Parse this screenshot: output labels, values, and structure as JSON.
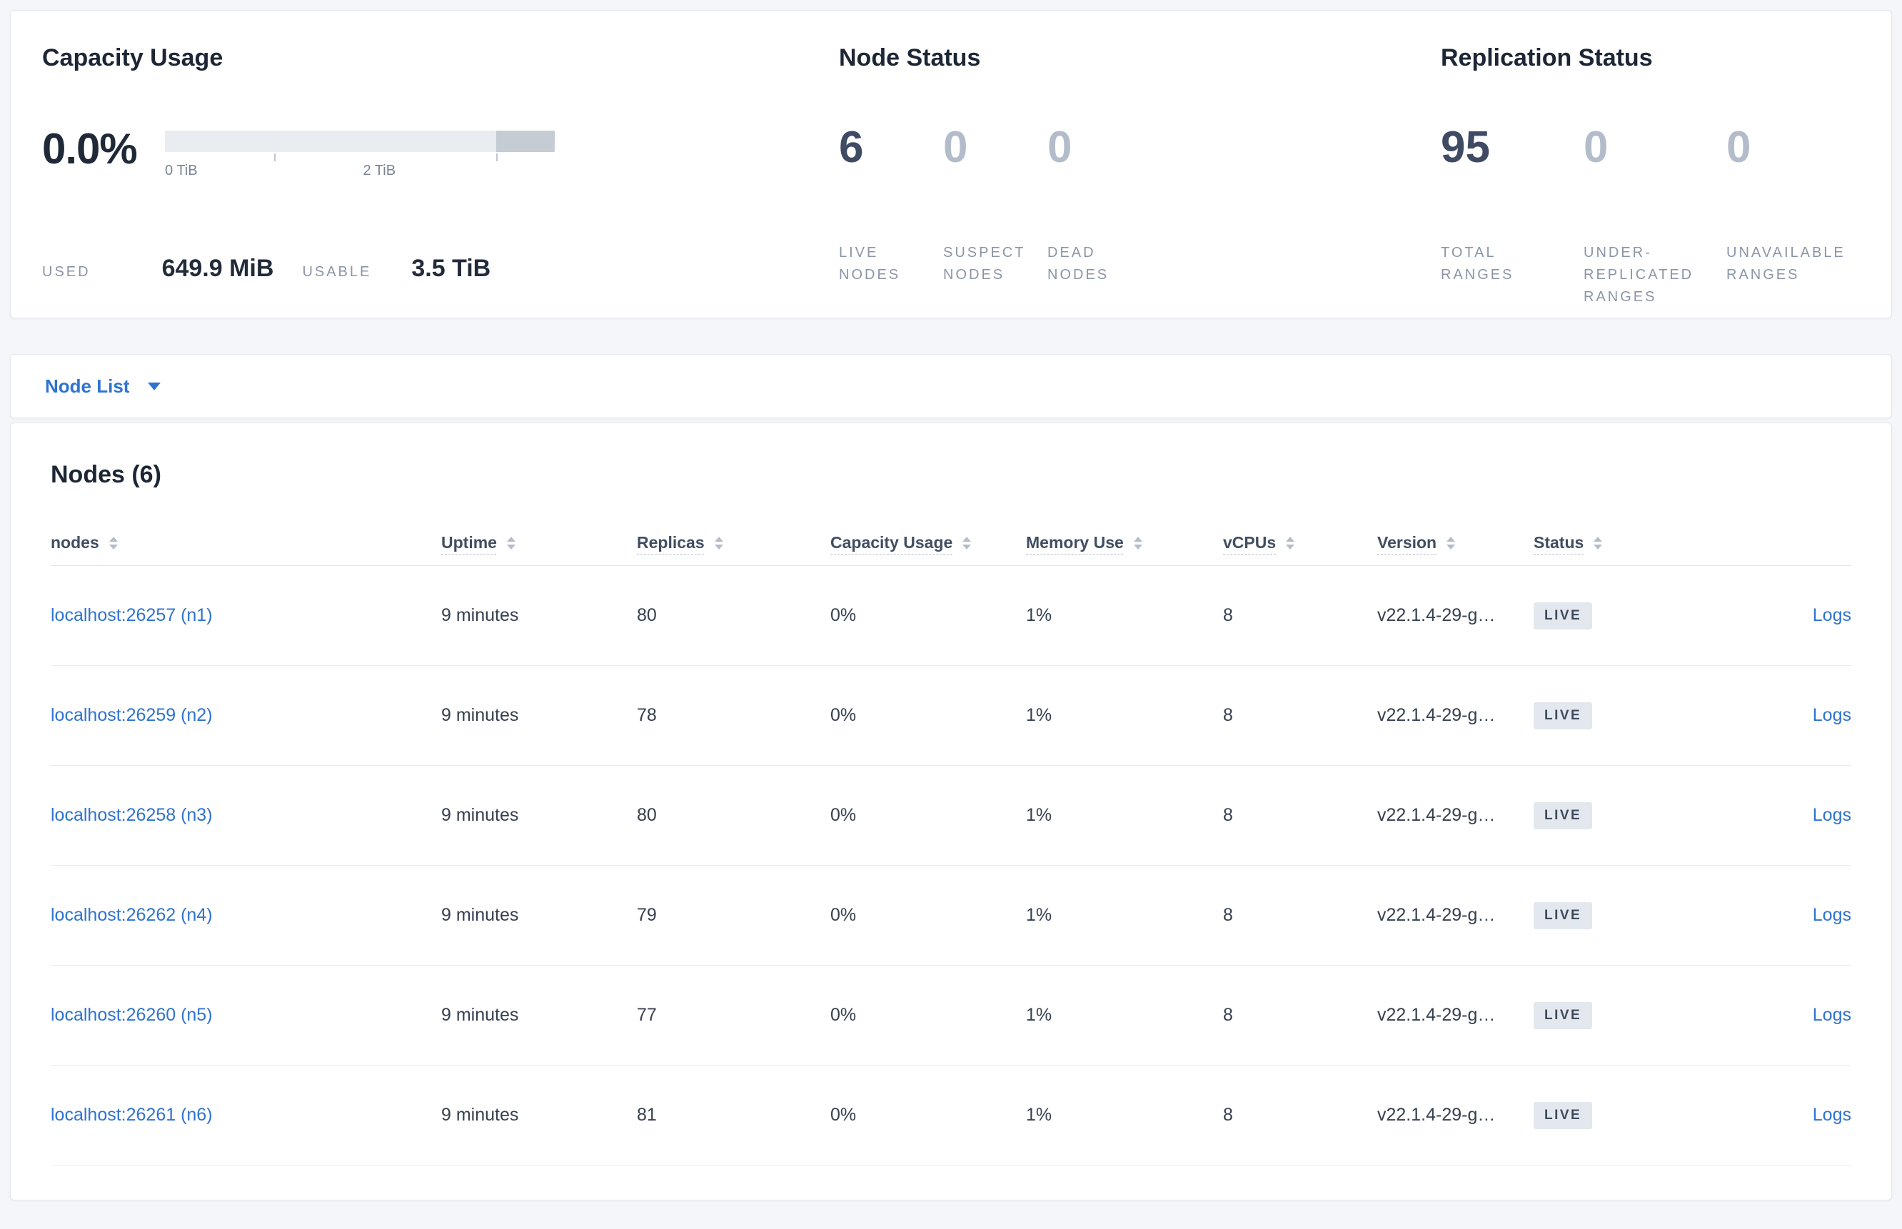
{
  "theme": {
    "accent_blue": "#2f73d0",
    "page_bg": "#f4f6f9",
    "card_bg": "#ffffff",
    "heading_color": "#1d2635",
    "stat_value_color": "#3f4b63",
    "stat_muted_color": "#b3bcca",
    "label_color": "#8b95a7",
    "cell_color": "#37404f",
    "border_color": "#e8ecf1",
    "badge_bg": "#e3e8ef",
    "badge_color": "#3f4a5c",
    "bar_bg": "#e9edf2",
    "bar_dark": "#c6ccd4"
  },
  "summary": {
    "capacity": {
      "title": "Capacity Usage",
      "percent": "0.0%",
      "tick_label_0": "0 TiB",
      "tick_label_2": "2 TiB",
      "used_label": "USED",
      "used_value": "649.9 MiB",
      "usable_label": "USABLE",
      "usable_value": "3.5 TiB"
    },
    "node_status": {
      "title": "Node Status",
      "stats": [
        {
          "value": "6",
          "label": "LIVE NODES"
        },
        {
          "value": "0",
          "label": "SUSPECT NODES"
        },
        {
          "value": "0",
          "label": "DEAD NODES"
        }
      ]
    },
    "replication_status": {
      "title": "Replication Status",
      "stats": [
        {
          "value": "95",
          "label": "TOTAL RANGES"
        },
        {
          "value": "0",
          "label": "UNDER-REPLICATED RANGES"
        },
        {
          "value": "0",
          "label": "UNAVAILABLE RANGES"
        }
      ]
    }
  },
  "view_selector": {
    "label": "Node List"
  },
  "nodes_table": {
    "title": "Nodes (6)",
    "columns": {
      "nodes": "nodes",
      "uptime": "Uptime",
      "replicas": "Replicas",
      "capacity": "Capacity Usage",
      "memory": "Memory Use",
      "vcpus": "vCPUs",
      "version": "Version",
      "status": "Status"
    },
    "rows": [
      {
        "node": "localhost:26257 (n1)",
        "uptime": "9 minutes",
        "replicas": "80",
        "capacity": "0%",
        "memory": "1%",
        "vcpus": "8",
        "version": "v22.1.4-29-g…",
        "status": "LIVE",
        "logs": "Logs"
      },
      {
        "node": "localhost:26259 (n2)",
        "uptime": "9 minutes",
        "replicas": "78",
        "capacity": "0%",
        "memory": "1%",
        "vcpus": "8",
        "version": "v22.1.4-29-g…",
        "status": "LIVE",
        "logs": "Logs"
      },
      {
        "node": "localhost:26258 (n3)",
        "uptime": "9 minutes",
        "replicas": "80",
        "capacity": "0%",
        "memory": "1%",
        "vcpus": "8",
        "version": "v22.1.4-29-g…",
        "status": "LIVE",
        "logs": "Logs"
      },
      {
        "node": "localhost:26262 (n4)",
        "uptime": "9 minutes",
        "replicas": "79",
        "capacity": "0%",
        "memory": "1%",
        "vcpus": "8",
        "version": "v22.1.4-29-g…",
        "status": "LIVE",
        "logs": "Logs"
      },
      {
        "node": "localhost:26260 (n5)",
        "uptime": "9 minutes",
        "replicas": "77",
        "capacity": "0%",
        "memory": "1%",
        "vcpus": "8",
        "version": "v22.1.4-29-g…",
        "status": "LIVE",
        "logs": "Logs"
      },
      {
        "node": "localhost:26261 (n6)",
        "uptime": "9 minutes",
        "replicas": "81",
        "capacity": "0%",
        "memory": "1%",
        "vcpus": "8",
        "version": "v22.1.4-29-g…",
        "status": "LIVE",
        "logs": "Logs"
      }
    ]
  }
}
